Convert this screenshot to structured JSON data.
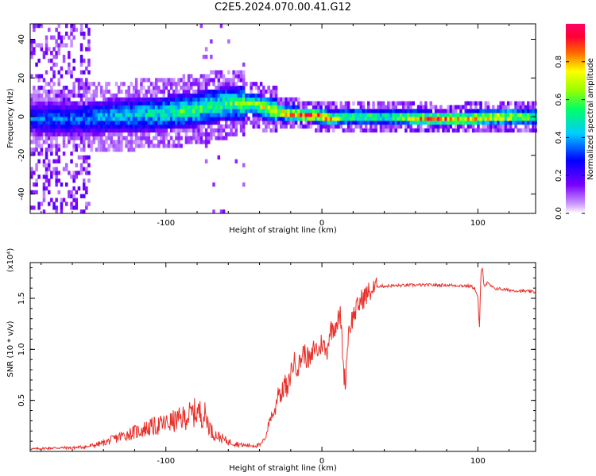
{
  "title": "C2E5.2024.070.00.41.G12",
  "chart_data": [
    {
      "type": "heatmap",
      "xlabel": "Height of straight line (km)",
      "ylabel": "Frequency (Hz)",
      "xlim": [
        -187,
        137
      ],
      "ylim": [
        -50,
        48
      ],
      "xticks": [
        -100,
        0,
        100
      ],
      "yticks": [
        -40,
        -20,
        0,
        20,
        40
      ],
      "colorbar": {
        "label": "Normalized spectral amplitude",
        "range": [
          0,
          1
        ],
        "ticks": [
          "0.0",
          "0.2",
          "0.4",
          "0.6",
          "0.8"
        ],
        "colormap": [
          "#ffffff",
          "#cc99ff",
          "#7a00ff",
          "#0000ff",
          "#00ccff",
          "#00ff66",
          "#99ff00",
          "#ffff00",
          "#ff6600",
          "#ff0033",
          "#ff0066"
        ]
      },
      "ridge": {
        "x": [
          -187,
          -160,
          -140,
          -120,
          -100,
          -80,
          -60,
          -45,
          -35,
          -25,
          -15,
          -5,
          0,
          5,
          15,
          40,
          70,
          90,
          110,
          137
        ],
        "center_hz": [
          -2,
          -2,
          -1,
          0,
          1,
          3,
          6,
          6,
          3,
          1,
          0,
          0,
          -1,
          -2,
          -1,
          -1,
          -2,
          -2,
          -1,
          -1
        ],
        "amplitude": [
          0.35,
          0.38,
          0.45,
          0.5,
          0.55,
          0.6,
          0.6,
          0.65,
          0.75,
          0.85,
          0.9,
          0.9,
          0.95,
          0.8,
          0.7,
          0.6,
          0.9,
          0.8,
          0.85,
          0.7
        ]
      },
      "noise_region": {
        "x_from": -187,
        "x_to": -150
      }
    },
    {
      "type": "line",
      "xlabel": "Height of straight line (km)",
      "ylabel": "SNR (10 * v/v)",
      "yscale_label": "(x10⁴)",
      "xlim": [
        -187,
        137
      ],
      "ylim": [
        0,
        1.85
      ],
      "xticks": [
        -100,
        0,
        100
      ],
      "yticks": [
        0.5,
        1.0,
        1.5
      ],
      "ytick_labels": [
        "0.5",
        "1.0",
        "1.5"
      ],
      "color": "#e8302a",
      "series": [
        {
          "x": [
            -187,
            -170,
            -160,
            -150,
            -140,
            -130,
            -120,
            -110,
            -100,
            -90,
            -80,
            -75,
            -70,
            -60,
            -50,
            -40,
            -36,
            -33,
            -30,
            -28,
            -26,
            -24,
            -22,
            -20,
            -18,
            -15,
            -12,
            -10,
            -7,
            -5,
            -2,
            0,
            3,
            5,
            8,
            10,
            12,
            14,
            15,
            17,
            20,
            25,
            30,
            35,
            40,
            60,
            80,
            95,
            98,
            100,
            101,
            102,
            103,
            104,
            106,
            110,
            120,
            130,
            137
          ],
          "y": [
            0.02,
            0.03,
            0.03,
            0.04,
            0.07,
            0.12,
            0.16,
            0.2,
            0.23,
            0.27,
            0.33,
            0.3,
            0.15,
            0.08,
            0.05,
            0.05,
            0.15,
            0.35,
            0.4,
            0.65,
            0.55,
            0.7,
            0.6,
            0.8,
            0.9,
            0.85,
            1.0,
            0.95,
            0.9,
            1.05,
            1.0,
            1.1,
            0.98,
            1.2,
            1.25,
            1.3,
            1.35,
            0.8,
            0.7,
            1.2,
            1.35,
            1.5,
            1.58,
            1.62,
            1.62,
            1.63,
            1.63,
            1.62,
            1.6,
            1.5,
            1.2,
            1.75,
            1.8,
            1.62,
            1.65,
            1.6,
            1.58,
            1.57,
            1.56
          ]
        }
      ]
    }
  ]
}
